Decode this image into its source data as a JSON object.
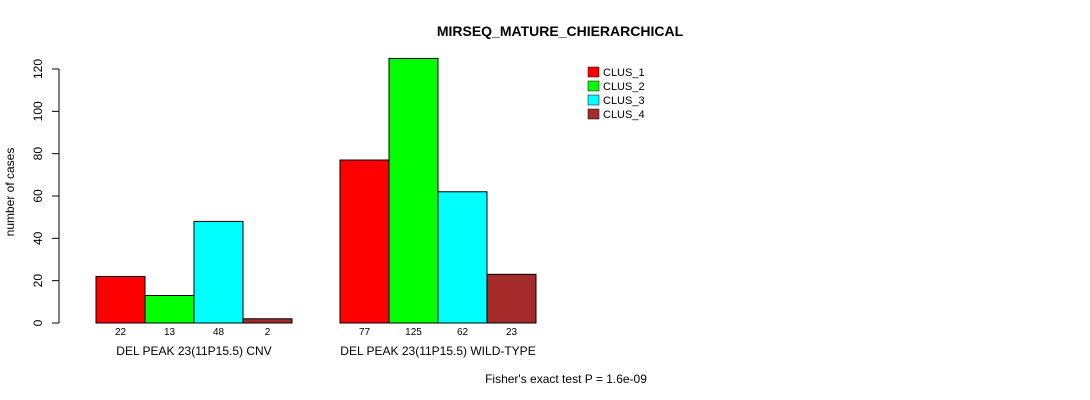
{
  "chart_data": {
    "type": "bar",
    "title": "MIRSEQ_MATURE_CHIERARCHICAL",
    "ylabel": "number of cases",
    "ylim": [
      0,
      120
    ],
    "yticks": [
      0,
      20,
      40,
      60,
      80,
      100,
      120
    ],
    "groups": [
      "DEL PEAK 23(11P15.5) CNV",
      "DEL PEAK 23(11P15.5) WILD-TYPE"
    ],
    "series": [
      {
        "name": "CLUS_1",
        "color": "#ff0000",
        "values": [
          22,
          77
        ]
      },
      {
        "name": "CLUS_2",
        "color": "#00ff00",
        "values": [
          13,
          125
        ]
      },
      {
        "name": "CLUS_3",
        "color": "#00ffff",
        "values": [
          48,
          62
        ]
      },
      {
        "name": "CLUS_4",
        "color": "#a52a2a",
        "values": [
          2,
          23
        ]
      }
    ],
    "legend_position": "top-right",
    "footnote": "Fisher's exact test P = 1.6e-09"
  }
}
